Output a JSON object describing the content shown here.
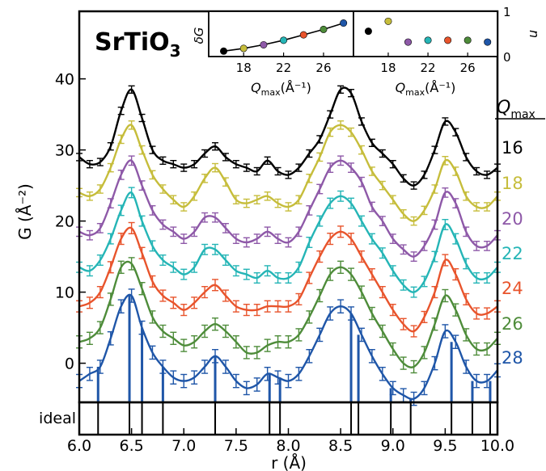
{
  "chart_data": [
    {
      "type": "line",
      "title": "SrTiO₃",
      "xlabel": "r (Å)",
      "ylabel": "G (Å⁻²)",
      "xlim": [
        6.0,
        10.0
      ],
      "ylim": [
        -5.5,
        49.5
      ],
      "x_ticks": [
        6.0,
        6.5,
        7.0,
        7.5,
        8.0,
        8.5,
        9.0,
        9.5,
        10.0
      ],
      "y_ticks": [
        0,
        10,
        20,
        30,
        40
      ],
      "legend_title": "Q_max",
      "grid": false,
      "x": [
        6.0,
        6.1,
        6.2,
        6.3,
        6.4,
        6.5,
        6.6,
        6.7,
        6.8,
        6.9,
        7.0,
        7.1,
        7.2,
        7.3,
        7.4,
        7.5,
        7.6,
        7.7,
        7.8,
        7.9,
        8.0,
        8.1,
        8.2,
        8.3,
        8.4,
        8.5,
        8.6,
        8.7,
        8.8,
        8.9,
        9.0,
        9.1,
        9.2,
        9.3,
        9.4,
        9.5,
        9.6,
        9.7,
        9.8,
        9.9,
        10.0
      ],
      "series": [
        {
          "name": "16",
          "color": "#000000",
          "values": [
            29.0,
            28.0,
            28.3,
            30.5,
            35.5,
            38.5,
            34.5,
            30.0,
            28.5,
            28.0,
            27.5,
            28.0,
            29.5,
            30.5,
            29.0,
            28.0,
            27.5,
            27.0,
            28.5,
            27.0,
            26.5,
            27.5,
            29.5,
            31.5,
            35.0,
            38.5,
            38.0,
            34.0,
            31.0,
            29.5,
            28.0,
            26.0,
            25.0,
            26.5,
            30.0,
            34.0,
            32.5,
            29.0,
            27.0,
            26.5,
            27.5
          ]
        },
        {
          "name": "18",
          "color": "#c6bd3b",
          "values": [
            24.0,
            23.5,
            24.5,
            27.5,
            31.5,
            33.5,
            30.0,
            26.5,
            24.5,
            23.0,
            22.0,
            23.5,
            26.0,
            27.5,
            25.5,
            23.0,
            22.5,
            23.0,
            23.5,
            22.5,
            22.0,
            23.0,
            26.0,
            29.0,
            32.5,
            33.5,
            32.5,
            30.0,
            27.0,
            25.0,
            23.0,
            21.0,
            20.0,
            21.5,
            24.5,
            28.5,
            27.0,
            23.5,
            22.0,
            22.0,
            23.5
          ]
        },
        {
          "name": "20",
          "color": "#8e59a8",
          "values": [
            18.5,
            18.0,
            19.0,
            22.5,
            26.5,
            28.5,
            25.0,
            21.5,
            19.5,
            18.5,
            17.5,
            18.5,
            20.5,
            20.5,
            19.0,
            17.5,
            17.0,
            17.5,
            18.5,
            17.5,
            17.0,
            18.5,
            21.5,
            24.5,
            27.5,
            28.5,
            27.5,
            25.5,
            22.0,
            20.0,
            17.5,
            16.0,
            15.0,
            16.5,
            19.5,
            24.0,
            22.5,
            18.5,
            16.5,
            16.5,
            18.0
          ]
        },
        {
          "name": "22",
          "color": "#25b5b6",
          "values": [
            13.5,
            13.0,
            14.5,
            17.5,
            21.5,
            24.0,
            20.0,
            16.5,
            14.5,
            13.5,
            12.5,
            13.5,
            16.0,
            16.0,
            14.5,
            13.0,
            12.5,
            12.0,
            13.0,
            12.0,
            12.0,
            13.5,
            17.0,
            20.0,
            22.5,
            23.5,
            22.5,
            20.0,
            17.5,
            15.5,
            13.0,
            11.0,
            10.0,
            11.5,
            15.0,
            19.5,
            17.5,
            14.0,
            12.0,
            12.0,
            13.5
          ]
        },
        {
          "name": "24",
          "color": "#e8542c",
          "values": [
            8.0,
            8.5,
            10.0,
            13.5,
            17.5,
            19.0,
            15.5,
            11.5,
            9.5,
            8.5,
            7.5,
            8.5,
            10.0,
            11.0,
            9.5,
            8.0,
            7.5,
            7.5,
            8.0,
            8.0,
            8.0,
            9.0,
            12.0,
            15.0,
            17.5,
            18.5,
            17.5,
            15.0,
            12.5,
            10.0,
            7.5,
            5.5,
            4.5,
            6.5,
            10.0,
            14.5,
            12.5,
            9.0,
            7.0,
            7.0,
            8.0
          ]
        },
        {
          "name": "26",
          "color": "#4e8c3a",
          "values": [
            3.0,
            3.5,
            5.0,
            9.0,
            13.5,
            14.0,
            10.5,
            6.5,
            4.5,
            3.5,
            2.5,
            3.0,
            4.5,
            5.5,
            4.5,
            3.0,
            1.5,
            1.5,
            2.5,
            3.0,
            3.0,
            4.0,
            6.5,
            9.5,
            12.5,
            13.5,
            12.5,
            10.0,
            7.0,
            4.5,
            2.0,
            0.0,
            -0.5,
            1.5,
            5.5,
            9.5,
            7.5,
            4.0,
            2.0,
            2.0,
            3.5
          ]
        },
        {
          "name": "28",
          "color": "#1f56a8",
          "values": [
            -2.5,
            -1.5,
            -0.5,
            3.5,
            8.0,
            9.5,
            5.0,
            1.5,
            -0.5,
            -2.0,
            -2.5,
            -2.0,
            -0.5,
            1.0,
            -0.5,
            -2.5,
            -3.5,
            -3.0,
            -1.5,
            -2.0,
            -2.5,
            -1.5,
            1.0,
            4.0,
            7.0,
            8.0,
            7.0,
            4.0,
            1.0,
            -1.5,
            -3.5,
            -4.5,
            -5.0,
            -3.5,
            0.0,
            4.5,
            3.0,
            -0.5,
            -2.5,
            -2.5,
            -1.0
          ]
        }
      ],
      "ideal_label": "ideal",
      "ideal_positions": [
        6.18,
        6.48,
        6.6,
        6.8,
        7.3,
        7.82,
        7.92,
        8.6,
        8.67,
        8.98,
        9.17,
        9.56,
        9.76,
        9.93
      ]
    },
    {
      "type": "line",
      "title": "",
      "xlabel": "Q_max(Å⁻¹)",
      "ylabel": "δG",
      "xlim": [
        14.5,
        29.0
      ],
      "x_ticks": [
        18,
        22,
        26
      ],
      "x": [
        16,
        18,
        20,
        22,
        24,
        26,
        28
      ],
      "values": [
        0.12,
        0.18,
        0.26,
        0.36,
        0.48,
        0.6,
        0.74
      ],
      "colors": [
        "#000000",
        "#c6bd3b",
        "#8e59a8",
        "#25b5b6",
        "#e8542c",
        "#4e8c3a",
        "#1f56a8"
      ]
    },
    {
      "type": "scatter",
      "title": "",
      "xlabel": "Q_max(Å⁻¹)",
      "ylabel": "n",
      "xlim": [
        14.5,
        29.0
      ],
      "ylim": [
        0,
        1
      ],
      "x_ticks": [
        18,
        22,
        26
      ],
      "y_ticks": [
        0,
        1
      ],
      "x": [
        16,
        18,
        20,
        22,
        24,
        26,
        28
      ],
      "values": [
        0.56,
        0.78,
        0.32,
        0.36,
        0.36,
        0.36,
        0.32
      ],
      "colors": [
        "#000000",
        "#c6bd3b",
        "#8e59a8",
        "#25b5b6",
        "#e8542c",
        "#4e8c3a",
        "#1f56a8"
      ]
    }
  ]
}
